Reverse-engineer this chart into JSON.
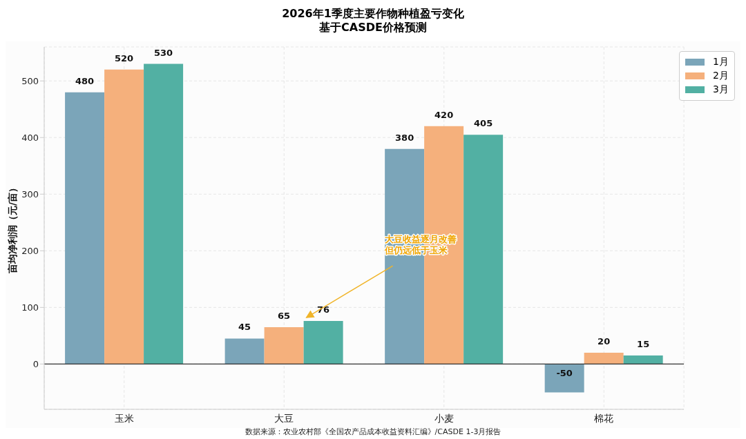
{
  "chart_data": {
    "type": "bar",
    "title": "2026年1季度主要作物种植盈亏变化",
    "subtitle": "基于CASDE价格预测",
    "ylabel": "亩均净利润（元/亩）",
    "categories": [
      "玉米",
      "大豆",
      "小麦",
      "棉花"
    ],
    "series": [
      {
        "name": "1月",
        "color": "#7ba5b9",
        "values": [
          480,
          45,
          380,
          -50
        ]
      },
      {
        "name": "2月",
        "color": "#f5b07c",
        "values": [
          520,
          65,
          420,
          20
        ]
      },
      {
        "name": "3月",
        "color": "#52b0a3",
        "values": [
          530,
          76,
          405,
          15
        ]
      }
    ],
    "ylim": [
      -80,
      560
    ],
    "yticks": [
      0,
      100,
      200,
      300,
      400,
      500
    ],
    "grid": true,
    "legend": "top right",
    "data_labels": true,
    "ref_lines": [
      {
        "axis": "y",
        "value": 0,
        "color": "#333333"
      }
    ],
    "annotations": [
      "大豆收益逐月改善",
      "但仍远低于玉米",
      "数据来源：农业农村部《全国农产品成本收益资料汇编》/CASDE 1-3月报告"
    ]
  }
}
